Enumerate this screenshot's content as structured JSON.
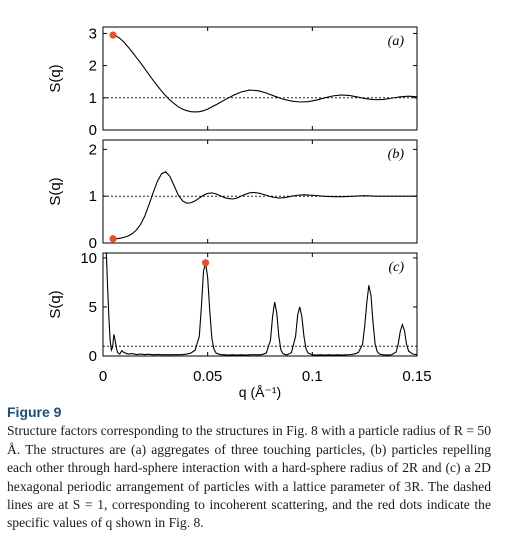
{
  "chart_data": [
    {
      "type": "line",
      "panel_label": "(a)",
      "ylabel": "S(q)",
      "xlim": [
        0,
        0.15
      ],
      "ylim": [
        0,
        3.2
      ],
      "yticks": [
        0,
        1,
        2,
        3
      ],
      "reference_line": 1,
      "x": [
        0.0048,
        0.006,
        0.008,
        0.01,
        0.012,
        0.014,
        0.016,
        0.018,
        0.02,
        0.022,
        0.024,
        0.026,
        0.028,
        0.03,
        0.032,
        0.034,
        0.036,
        0.038,
        0.04,
        0.042,
        0.044,
        0.046,
        0.048,
        0.05,
        0.052,
        0.055,
        0.058,
        0.06,
        0.063,
        0.066,
        0.07,
        0.074,
        0.078,
        0.082,
        0.086,
        0.09,
        0.094,
        0.098,
        0.102,
        0.106,
        0.11,
        0.114,
        0.118,
        0.122,
        0.126,
        0.13,
        0.134,
        0.138,
        0.142,
        0.146,
        0.15
      ],
      "y": [
        2.95,
        2.93,
        2.85,
        2.73,
        2.58,
        2.42,
        2.25,
        2.08,
        1.9,
        1.72,
        1.54,
        1.37,
        1.21,
        1.06,
        0.93,
        0.82,
        0.72,
        0.65,
        0.6,
        0.57,
        0.56,
        0.57,
        0.6,
        0.65,
        0.72,
        0.82,
        0.93,
        1.0,
        1.1,
        1.18,
        1.24,
        1.22,
        1.15,
        1.05,
        0.96,
        0.9,
        0.87,
        0.88,
        0.93,
        1.0,
        1.06,
        1.09,
        1.07,
        1.02,
        0.97,
        0.94,
        0.95,
        0.99,
        1.03,
        1.05,
        1.03
      ],
      "marked_point": {
        "x": 0.0048,
        "y": 2.95
      }
    },
    {
      "type": "line",
      "panel_label": "(b)",
      "ylabel": "S(q)",
      "xlim": [
        0,
        0.15
      ],
      "ylim": [
        0,
        2.2
      ],
      "yticks": [
        0,
        1,
        2
      ],
      "reference_line": 1,
      "x": [
        0.0048,
        0.006,
        0.008,
        0.01,
        0.012,
        0.014,
        0.016,
        0.018,
        0.02,
        0.022,
        0.024,
        0.026,
        0.028,
        0.03,
        0.032,
        0.034,
        0.036,
        0.038,
        0.04,
        0.042,
        0.044,
        0.046,
        0.048,
        0.05,
        0.052,
        0.054,
        0.056,
        0.058,
        0.06,
        0.062,
        0.064,
        0.066,
        0.068,
        0.07,
        0.072,
        0.075,
        0.078,
        0.081,
        0.084,
        0.087,
        0.09,
        0.093,
        0.096,
        0.1,
        0.105,
        0.11,
        0.115,
        0.12,
        0.125,
        0.13,
        0.135,
        0.14,
        0.145,
        0.15
      ],
      "y": [
        0.09,
        0.09,
        0.1,
        0.12,
        0.15,
        0.2,
        0.28,
        0.4,
        0.58,
        0.82,
        1.08,
        1.32,
        1.48,
        1.52,
        1.42,
        1.22,
        1.02,
        0.9,
        0.85,
        0.86,
        0.9,
        0.96,
        1.02,
        1.06,
        1.07,
        1.05,
        1.01,
        0.97,
        0.95,
        0.94,
        0.96,
        1.0,
        1.04,
        1.07,
        1.08,
        1.06,
        1.02,
        0.98,
        0.96,
        0.97,
        1.0,
        1.02,
        1.03,
        1.02,
        1.0,
        0.99,
        0.99,
        1.0,
        1.01,
        1.0,
        1.0,
        1.0,
        1.0,
        1.0
      ],
      "marked_point": {
        "x": 0.0048,
        "y": 0.09
      }
    },
    {
      "type": "line",
      "panel_label": "(c)",
      "ylabel": "S(q)",
      "xlabel": "q (Å⁻¹)",
      "xlim": [
        0,
        0.15
      ],
      "ylim": [
        0,
        10.5
      ],
      "yticks": [
        0,
        5,
        10
      ],
      "xticks": [
        0,
        0.05,
        0.1,
        0.15
      ],
      "xtick_labels": [
        "0",
        "0.05",
        "0.1",
        "0.15"
      ],
      "reference_line": 1,
      "x": [
        0.0016,
        0.0022,
        0.0028,
        0.0034,
        0.004,
        0.0046,
        0.0052,
        0.0058,
        0.0064,
        0.007,
        0.008,
        0.009,
        0.01,
        0.012,
        0.014,
        0.016,
        0.018,
        0.02,
        0.022,
        0.024,
        0.026,
        0.028,
        0.03,
        0.032,
        0.034,
        0.036,
        0.038,
        0.04,
        0.042,
        0.044,
        0.046,
        0.047,
        0.048,
        0.049,
        0.05,
        0.051,
        0.052,
        0.053,
        0.054,
        0.056,
        0.058,
        0.06,
        0.062,
        0.064,
        0.066,
        0.068,
        0.07,
        0.072,
        0.074,
        0.076,
        0.078,
        0.08,
        0.081,
        0.082,
        0.083,
        0.084,
        0.085,
        0.086,
        0.087,
        0.088,
        0.09,
        0.092,
        0.093,
        0.094,
        0.095,
        0.096,
        0.097,
        0.098,
        0.1,
        0.102,
        0.104,
        0.106,
        0.108,
        0.11,
        0.112,
        0.114,
        0.116,
        0.118,
        0.12,
        0.122,
        0.124,
        0.125,
        0.126,
        0.127,
        0.128,
        0.129,
        0.13,
        0.131,
        0.132,
        0.134,
        0.136,
        0.138,
        0.14,
        0.141,
        0.142,
        0.143,
        0.144,
        0.145,
        0.146,
        0.148,
        0.15
      ],
      "y": [
        10.5,
        7.0,
        4.0,
        1.6,
        0.6,
        0.9,
        2.2,
        1.6,
        0.8,
        0.35,
        0.2,
        0.55,
        0.35,
        0.2,
        0.25,
        0.15,
        0.2,
        0.15,
        0.18,
        0.12,
        0.16,
        0.12,
        0.14,
        0.12,
        0.14,
        0.13,
        0.15,
        0.2,
        0.3,
        0.6,
        2.0,
        5.0,
        8.6,
        9.5,
        8.0,
        4.6,
        1.8,
        0.7,
        0.3,
        0.15,
        0.12,
        0.1,
        0.12,
        0.1,
        0.12,
        0.1,
        0.12,
        0.14,
        0.12,
        0.15,
        0.3,
        1.6,
        4.0,
        5.5,
        4.4,
        2.0,
        0.6,
        0.25,
        0.15,
        0.12,
        0.35,
        2.0,
        4.2,
        5.0,
        4.0,
        2.0,
        0.7,
        0.3,
        0.12,
        0.1,
        0.12,
        0.1,
        0.12,
        0.1,
        0.12,
        0.1,
        0.12,
        0.14,
        0.2,
        0.35,
        1.2,
        3.0,
        5.4,
        7.2,
        6.2,
        3.4,
        1.2,
        0.45,
        0.2,
        0.12,
        0.1,
        0.14,
        0.4,
        1.2,
        2.5,
        3.2,
        2.6,
        1.2,
        0.5,
        0.2,
        0.12
      ],
      "marked_point": {
        "x": 0.049,
        "y": 9.5
      }
    }
  ],
  "caption": {
    "title": "Figure 9",
    "body": "Structure factors corresponding to the structures in Fig. 8 with a particle radius of R = 50 Å. The structures are (a) aggregates of three touching particles, (b) particles repelling each other through hard-sphere interaction with a hard-sphere radius of 2R and (c) a 2D hexagonal periodic arrangement of particles with a lattice parameter of 3R. The dashed lines are at S = 1, corresponding to incoherent scattering, and the red dots indicate the specific values of q shown in Fig. 8."
  },
  "colors": {
    "marker": "#e8502a",
    "caption_title": "#1a4e7a",
    "line": "#000000"
  }
}
